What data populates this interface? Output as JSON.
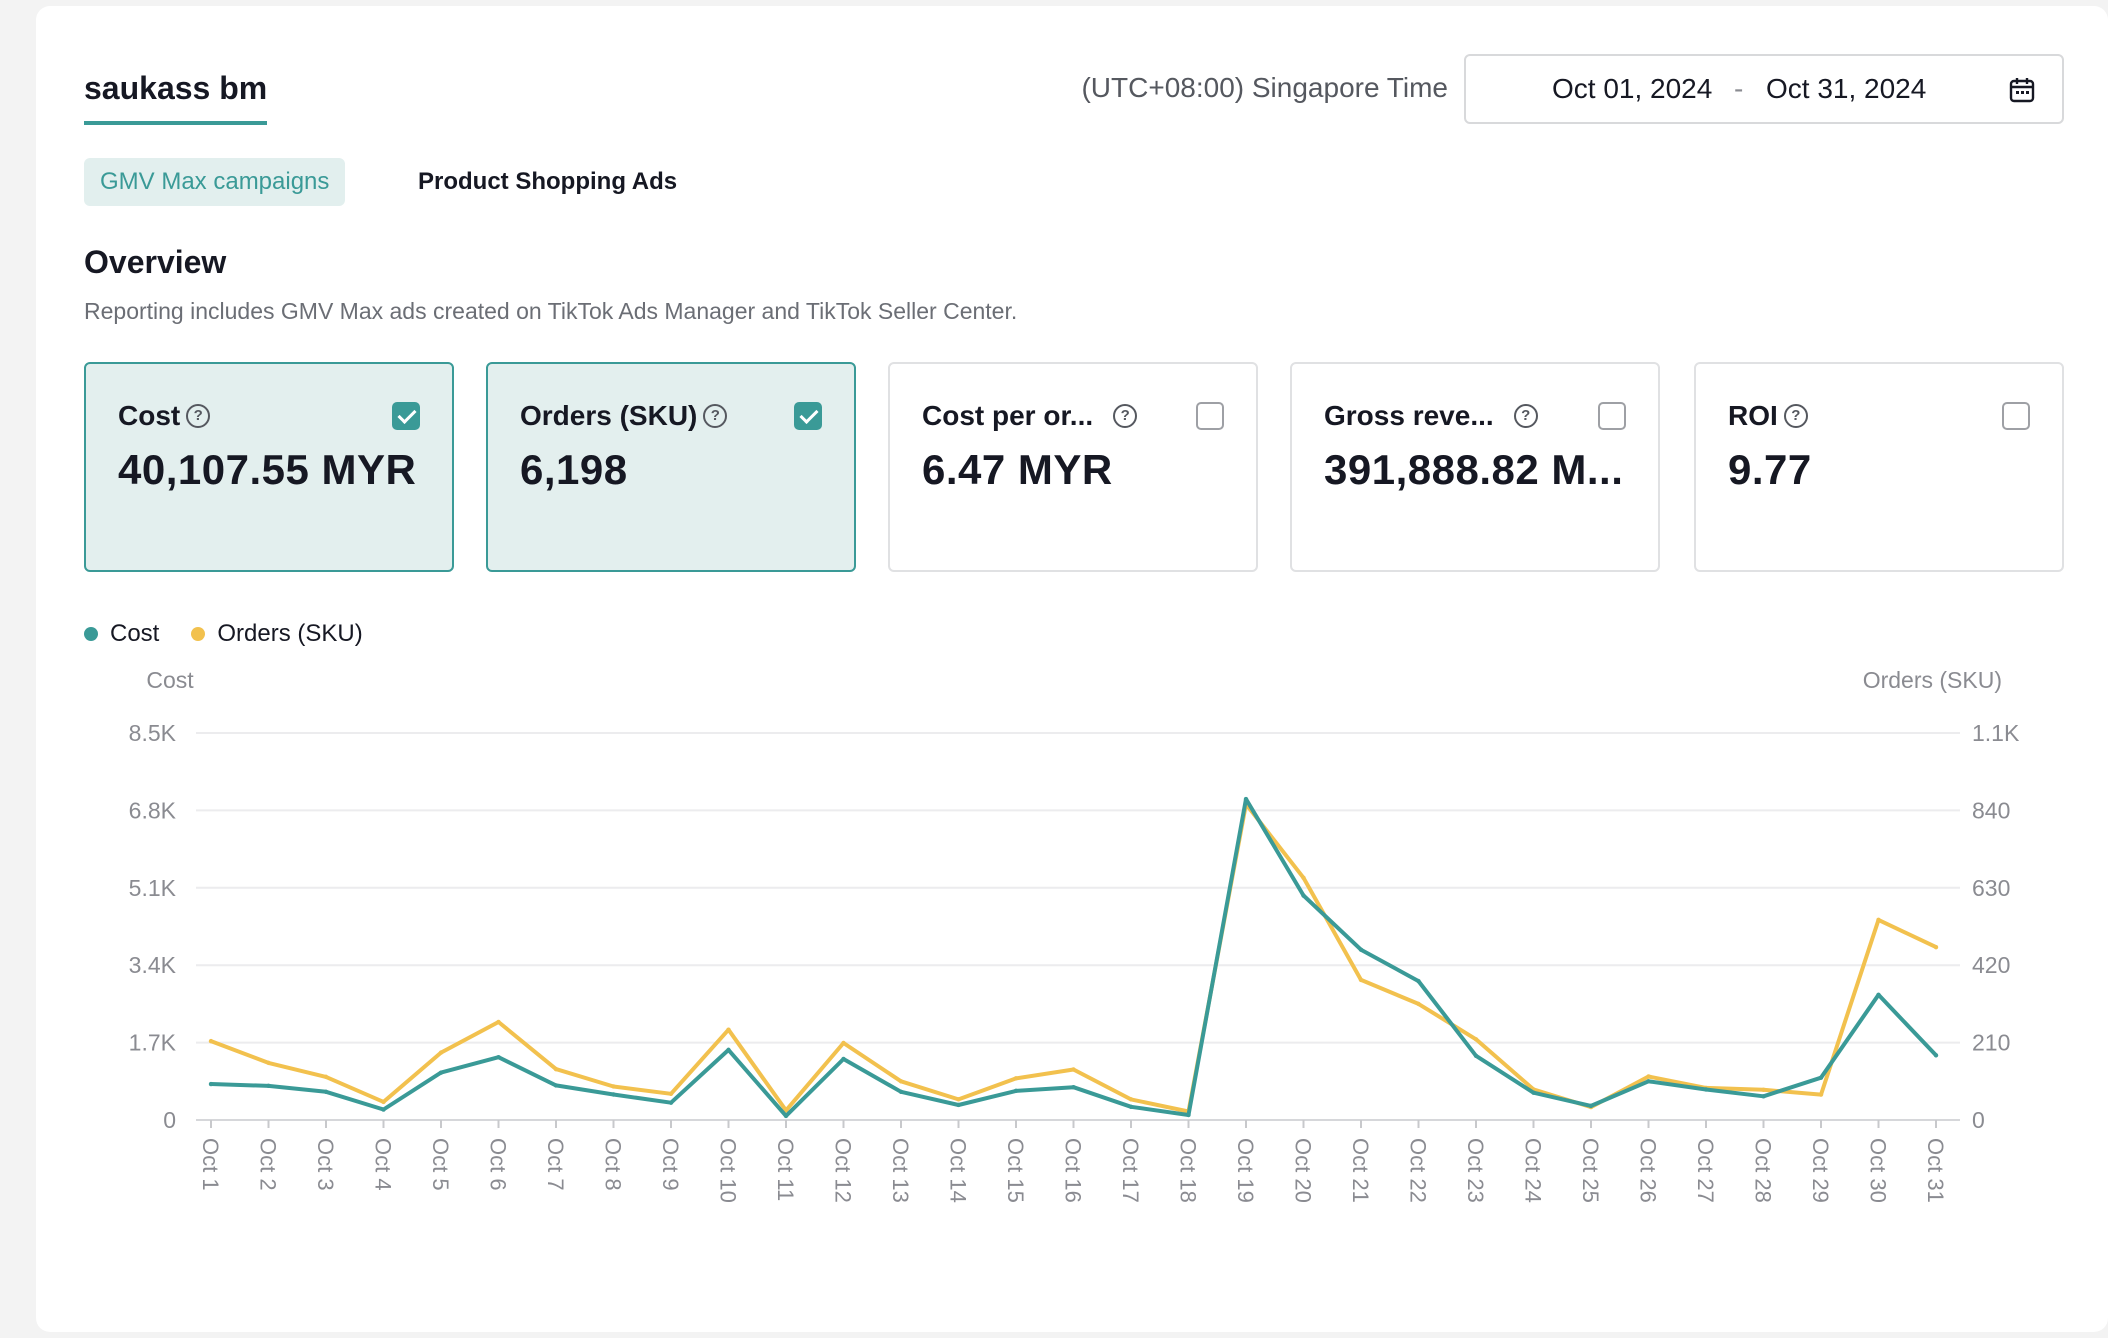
{
  "header": {
    "account_name": "saukass bm",
    "timezone": "(UTC+08:00) Singapore Time",
    "date_start": "Oct 01, 2024",
    "date_separator": "-",
    "date_end": "Oct 31, 2024"
  },
  "tabs": [
    {
      "label": "GMV Max campaigns",
      "active": true
    },
    {
      "label": "Product Shopping Ads",
      "active": false
    }
  ],
  "overview": {
    "title": "Overview",
    "description": "Reporting includes GMV Max ads created on TikTok Ads Manager and TikTok Seller Center."
  },
  "metrics": [
    {
      "label": "Cost",
      "value": "40,107.55 MYR",
      "checked": true
    },
    {
      "label": "Orders (SKU)",
      "value": "6,198",
      "checked": true
    },
    {
      "label": "Cost per or...",
      "value": "6.47 MYR",
      "checked": false
    },
    {
      "label": "Gross reve...",
      "value": "391,888.82 M...",
      "checked": false
    },
    {
      "label": "ROI",
      "value": "9.77",
      "checked": false
    }
  ],
  "colors": {
    "accent": "#3a9a97",
    "cost_series": "#3a9a97",
    "orders_series": "#f2c14e",
    "selected_card_bg": "#e3efee"
  },
  "icons": {
    "date_picker": "calendar-icon",
    "metric_help": "question-circle-icon",
    "metric_toggle": "checkbox-icon"
  },
  "chart_data": {
    "type": "line",
    "legend_position": "top-left",
    "grid": true,
    "left_axis_title": "Cost",
    "right_axis_title": "Orders (SKU)",
    "left_ticks": [
      "0",
      "1.7K",
      "3.4K",
      "5.1K",
      "6.8K",
      "8.5K"
    ],
    "right_ticks": [
      "0",
      "210",
      "420",
      "630",
      "840",
      "1.1K"
    ],
    "left_ylim": [
      0,
      8500
    ],
    "right_ylim": [
      0,
      1050
    ],
    "categories": [
      "Oct 1",
      "Oct 2",
      "Oct 3",
      "Oct 4",
      "Oct 5",
      "Oct 6",
      "Oct 7",
      "Oct 8",
      "Oct 9",
      "Oct 10",
      "Oct 11",
      "Oct 12",
      "Oct 13",
      "Oct 14",
      "Oct 15",
      "Oct 16",
      "Oct 17",
      "Oct 18",
      "Oct 19",
      "Oct 20",
      "Oct 21",
      "Oct 22",
      "Oct 23",
      "Oct 24",
      "Oct 25",
      "Oct 26",
      "Oct 27",
      "Oct 28",
      "Oct 29",
      "Oct 30",
      "Oct 31"
    ],
    "series": [
      {
        "name": "Cost",
        "axis": "left",
        "color": "#3a9a97",
        "values": [
          790,
          750,
          620,
          230,
          1040,
          1380,
          760,
          560,
          380,
          1540,
          90,
          1340,
          620,
          330,
          640,
          720,
          290,
          110,
          7050,
          4930,
          3740,
          3050,
          1410,
          600,
          310,
          850,
          670,
          520,
          930,
          2750,
          1420
        ]
      },
      {
        "name": "Orders (SKU)",
        "axis": "left_right",
        "color": "#f2c14e",
        "values": [
          214,
          155,
          117,
          49,
          183,
          266,
          138,
          91,
          71,
          245,
          26,
          209,
          105,
          56,
          113,
          137,
          56,
          23,
          857,
          657,
          380,
          315,
          219,
          83,
          35,
          118,
          87,
          82,
          69,
          543,
          469
        ]
      }
    ]
  }
}
